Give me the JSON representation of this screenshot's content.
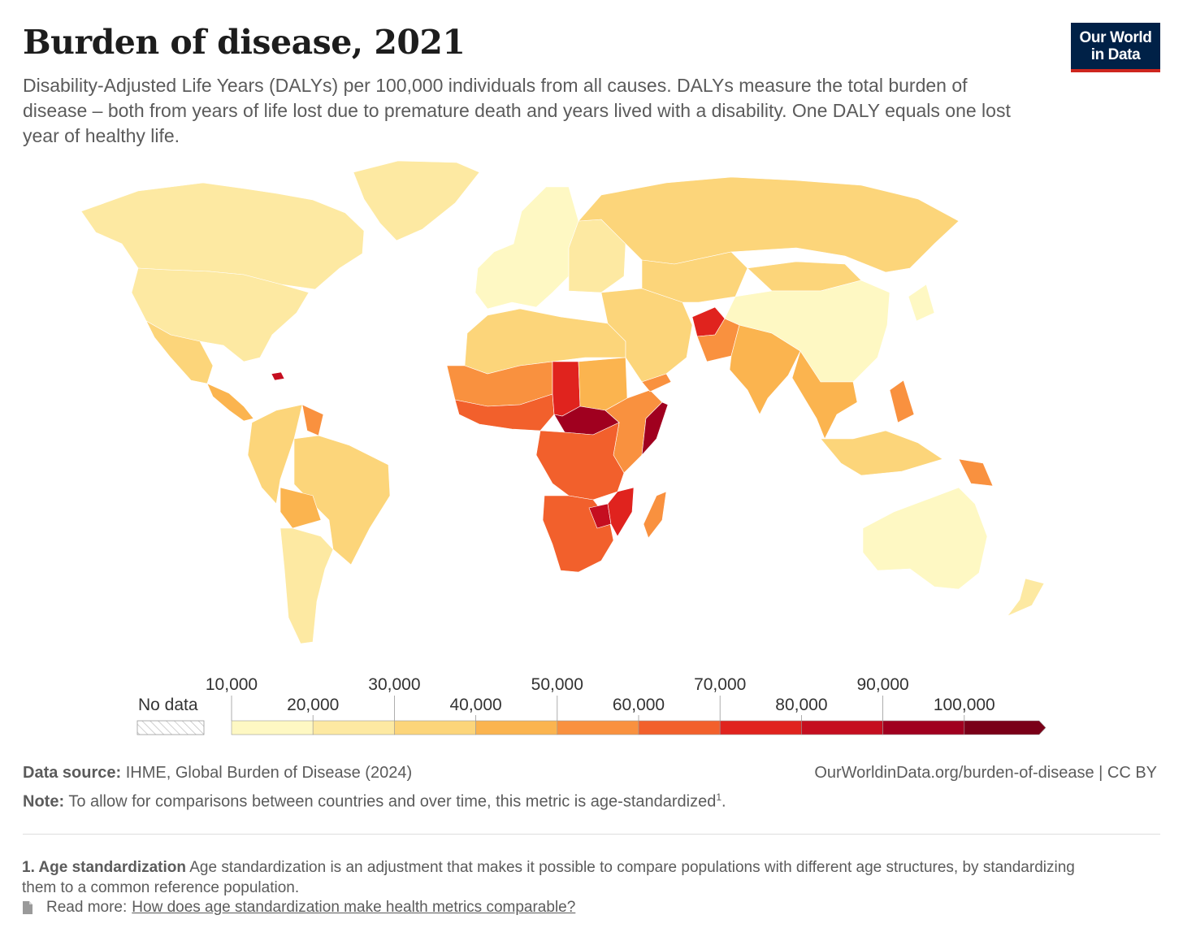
{
  "header": {
    "title": "Burden of disease, 2021",
    "subtitle": "Disability-Adjusted Life Years (DALYs) per 100,000 individuals from all causes. DALYs measure the total burden of disease – both from years of life lost due to premature death and years lived with a disability. One DALY equals one lost year of healthy life.",
    "logo_line1": "Our World",
    "logo_line2": "in Data"
  },
  "legend": {
    "no_data_label": "No data",
    "bins": [
      {
        "label": "10,000",
        "color": "#fef8c3"
      },
      {
        "label": "20,000",
        "color": "#fde9a2"
      },
      {
        "label": "30,000",
        "color": "#fcd57a"
      },
      {
        "label": "40,000",
        "color": "#fbb44f"
      },
      {
        "label": "50,000",
        "color": "#f9913f"
      },
      {
        "label": "60,000",
        "color": "#f2602c"
      },
      {
        "label": "70,000",
        "color": "#e0231e"
      },
      {
        "label": "80,000",
        "color": "#c50e20"
      },
      {
        "label": "90,000",
        "color": "#a0001f"
      },
      {
        "label": "100,000",
        "color": "#7a0018"
      }
    ]
  },
  "footer": {
    "source_label": "Data source:",
    "source_text": "IHME, Global Burden of Disease (2024)",
    "url": "OurWorldinData.org/burden-of-disease | CC BY",
    "note_label": "Note:",
    "note_text": "To allow for comparisons between countries and over time, this metric is age-standardized",
    "note_sup": "1",
    "footnote_label": "1. Age standardization",
    "footnote_text": "Age standardization is an adjustment that makes it possible to compare populations with different age structures, by standardizing them to a common reference population.",
    "read_more_label": "Read more:",
    "read_more_link": "How does age standardization make health metrics comparable?"
  },
  "map_regions": [
    {
      "name": "canada",
      "color": "#fde9a2"
    },
    {
      "name": "greenland",
      "color": "#fde9a2"
    },
    {
      "name": "usa",
      "color": "#fde9a2"
    },
    {
      "name": "mexico",
      "color": "#fcd57a"
    },
    {
      "name": "central-america",
      "color": "#fbb44f"
    },
    {
      "name": "haiti",
      "color": "#c50e20"
    },
    {
      "name": "brazil",
      "color": "#fcd57a"
    },
    {
      "name": "bolivia",
      "color": "#fbb44f"
    },
    {
      "name": "andes",
      "color": "#fcd57a"
    },
    {
      "name": "argentina",
      "color": "#fde9a2"
    },
    {
      "name": "guyana",
      "color": "#f9913f"
    },
    {
      "name": "western-europe",
      "color": "#fef8c3"
    },
    {
      "name": "eastern-europe",
      "color": "#fde9a2"
    },
    {
      "name": "russia",
      "color": "#fcd57a"
    },
    {
      "name": "north-africa",
      "color": "#fcd57a"
    },
    {
      "name": "sahel",
      "color": "#f9913f"
    },
    {
      "name": "west-africa",
      "color": "#f2602c"
    },
    {
      "name": "chad",
      "color": "#e0231e"
    },
    {
      "name": "sudan",
      "color": "#fbb44f"
    },
    {
      "name": "central-african-republic",
      "color": "#a0001f"
    },
    {
      "name": "east-africa",
      "color": "#f9913f"
    },
    {
      "name": "somalia",
      "color": "#a0001f"
    },
    {
      "name": "central-africa",
      "color": "#f2602c"
    },
    {
      "name": "southern-africa",
      "color": "#f2602c"
    },
    {
      "name": "mozambique",
      "color": "#e0231e"
    },
    {
      "name": "zimbabwe",
      "color": "#c50e20"
    },
    {
      "name": "madagascar",
      "color": "#f9913f"
    },
    {
      "name": "middle-east",
      "color": "#fcd57a"
    },
    {
      "name": "yemen",
      "color": "#f9913f"
    },
    {
      "name": "afghanistan",
      "color": "#e0231e"
    },
    {
      "name": "pakistan",
      "color": "#f9913f"
    },
    {
      "name": "central-asia",
      "color": "#fcd57a"
    },
    {
      "name": "india",
      "color": "#fbb44f"
    },
    {
      "name": "china",
      "color": "#fef8c3"
    },
    {
      "name": "mongolia",
      "color": "#fcd57a"
    },
    {
      "name": "southeast-asia",
      "color": "#fbb44f"
    },
    {
      "name": "japan",
      "color": "#fef8c3"
    },
    {
      "name": "indonesia",
      "color": "#fcd57a"
    },
    {
      "name": "philippines",
      "color": "#f9913f"
    },
    {
      "name": "papua-new-guinea",
      "color": "#f9913f"
    },
    {
      "name": "australia",
      "color": "#fef8c3"
    },
    {
      "name": "new-zealand",
      "color": "#fde9a2"
    }
  ]
}
